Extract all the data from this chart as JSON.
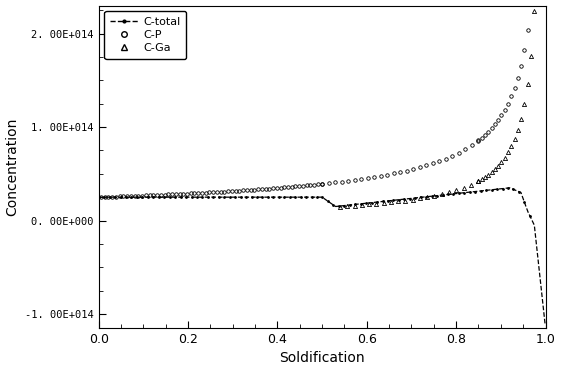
{
  "title": "",
  "xlabel": "Soldification",
  "ylabel": "Concentration",
  "xlim": [
    0.0,
    1.0
  ],
  "ylim": [
    -115000000000000.0,
    230000000000000.0
  ],
  "yticks": [
    -100000000000000.0,
    0.0,
    100000000000000.0,
    200000000000000.0
  ],
  "ytick_labels": [
    "-1. 00E+014",
    "0. 00E+000",
    "1. 00E+014",
    "2. 00E+014"
  ],
  "xticks": [
    0.0,
    0.2,
    0.4,
    0.6,
    0.8,
    1.0
  ],
  "xtick_labels": [
    "0.0",
    "0.2",
    "0.4",
    "0.6",
    "0.8",
    "1.0"
  ],
  "legend_entries": [
    "C-total",
    "C-P",
    "C-Ga"
  ],
  "background_color": "#ffffff",
  "line_color": "#000000",
  "k_P": 0.35,
  "C0_P": 71400000000000.0,
  "k_Ga": 0.08,
  "flat_level": 25000000000000.0,
  "figsize": [
    5.61,
    3.71
  ],
  "dpi": 100
}
